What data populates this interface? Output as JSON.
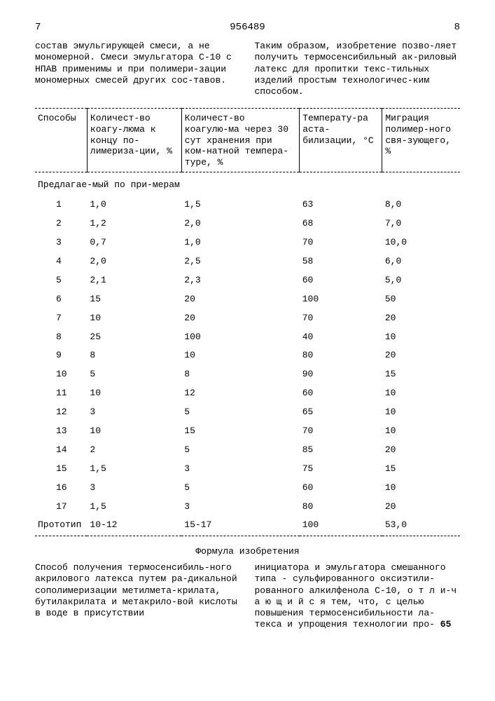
{
  "header": {
    "page_left": "7",
    "doc_number": "956489",
    "page_right": "8"
  },
  "intro": {
    "left_text": "состав эмульгирующей смеси, а не мономерной. Смеси эмульгатора С-10 с НПАВ применимы и при полимери-зации мономерных смесей других сос-тавов.",
    "right_text": "Таким образом, изобретение позво-ляет получить термосенсибильный ак-риловый латекс для пропитки текс-тильных изделий простым технологичес-ким способом."
  },
  "table": {
    "columns": [
      "Способы",
      "Количест-во коагу-люма к концу по-лимериза-ции, %",
      "Количест-во коагулю-ма через 30 сут хранения при ком-натной темпера-туре, %",
      "Температу-ра аста-билизации, °C",
      "Миграция полимер-ного свя-зующего, %"
    ],
    "section_label": "Предлагае-мый по при-мерам",
    "rows": [
      [
        "1",
        "1,0",
        "1,5",
        "63",
        "8,0"
      ],
      [
        "2",
        "1,2",
        "2,0",
        "68",
        "7,0"
      ],
      [
        "3",
        "0,7",
        "1,0",
        "70",
        "10,0"
      ],
      [
        "4",
        "2,0",
        "2,5",
        "58",
        "6,0"
      ],
      [
        "5",
        "2,1",
        "2,3",
        "60",
        "5,0"
      ],
      [
        "6",
        "15",
        "20",
        "100",
        "50"
      ],
      [
        "7",
        "10",
        "20",
        "70",
        "20"
      ],
      [
        "8",
        "25",
        "100",
        "40",
        "10"
      ],
      [
        "9",
        "8",
        "10",
        "80",
        "20"
      ],
      [
        "10",
        "5",
        "8",
        "90",
        "15"
      ],
      [
        "11",
        "10",
        "12",
        "60",
        "10"
      ],
      [
        "12",
        "3",
        "5",
        "65",
        "10"
      ],
      [
        "13",
        "10",
        "15",
        "70",
        "10"
      ],
      [
        "14",
        "2",
        "5",
        "85",
        "20"
      ],
      [
        "15",
        "1,5",
        "3",
        "75",
        "15"
      ],
      [
        "16",
        "3",
        "5",
        "60",
        "10"
      ],
      [
        "17",
        "1,5",
        "3",
        "80",
        "20"
      ]
    ],
    "prototype_row": [
      "Прототип",
      "10-12",
      "15-17",
      "100",
      "53,0"
    ]
  },
  "formula": {
    "title": "Формула изобретения",
    "left_text": "Способ получения термосенсибиль-ного акрилового латекса путем ра-дикальной сополимеризации метилмета-крилата, бутилакрилата и метакрило-вой кислоты в воде в присутствии",
    "right_text": "инициатора и эмульгатора смешанного типа - сульфированного оксиэтили-рованного алкилфенола С-10, о т л и-ч а ю щ и й с я  тем, что, с целью повышения термосенсибильности ла-текса и упрощения технологии про-",
    "line_marker": "65"
  }
}
